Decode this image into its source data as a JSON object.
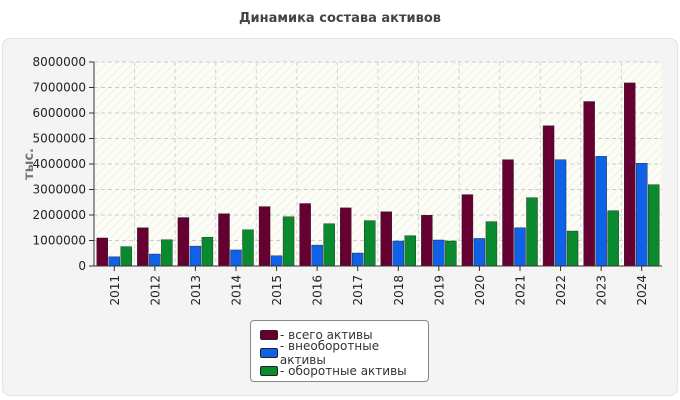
{
  "chart_data": {
    "type": "bar",
    "title": "Динамика состава активов",
    "ylabel": "тыс.",
    "xlabel": "",
    "ylim": [
      0,
      8000000
    ],
    "yticks": [
      0,
      1000000,
      2000000,
      3000000,
      4000000,
      5000000,
      6000000,
      7000000,
      8000000
    ],
    "categories": [
      "2011",
      "2012",
      "2013",
      "2014",
      "2015",
      "2016",
      "2017",
      "2018",
      "2019",
      "2020",
      "2021",
      "2022",
      "2023",
      "2024"
    ],
    "series": [
      {
        "name": "- всего активы",
        "color": "#660033",
        "values": [
          1100000,
          1500000,
          1900000,
          2050000,
          2330000,
          2450000,
          2280000,
          2130000,
          1990000,
          2800000,
          4170000,
          5500000,
          6450000,
          7180000
        ]
      },
      {
        "name": "- внеоборотные активы",
        "color": "#0f62e8",
        "values": [
          360000,
          470000,
          780000,
          630000,
          400000,
          820000,
          510000,
          980000,
          1020000,
          1080000,
          1500000,
          4170000,
          4300000,
          4030000
        ]
      },
      {
        "name": "- оборотные активы",
        "color": "#0a8a2e",
        "values": [
          760000,
          1030000,
          1130000,
          1420000,
          1930000,
          1660000,
          1780000,
          1190000,
          980000,
          1740000,
          2680000,
          1370000,
          2170000,
          3190000
        ]
      }
    ],
    "legend_position": "bottom-center"
  }
}
